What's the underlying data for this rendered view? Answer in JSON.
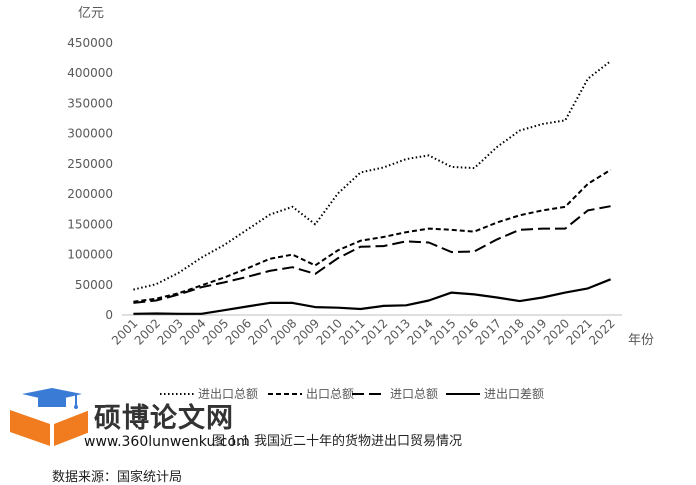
{
  "chart_data": {
    "type": "line",
    "ylabel": "亿元",
    "xlabel": "年份",
    "ylim": [
      0,
      450000
    ],
    "yticks": [
      0,
      50000,
      100000,
      150000,
      200000,
      250000,
      300000,
      350000,
      400000,
      450000
    ],
    "categories": [
      "2001",
      "2002",
      "2003",
      "2004",
      "2005",
      "2006",
      "2007",
      "2008",
      "2009",
      "2010",
      "2011",
      "2012",
      "2013",
      "2014",
      "2015",
      "2016",
      "2017",
      "2018",
      "2019",
      "2020",
      "2021",
      "2022"
    ],
    "series": [
      {
        "name": "进出口总额",
        "style": "dotted",
        "values": [
          42000,
          51000,
          70000,
          95000,
          116000,
          141000,
          166000,
          179000,
          150000,
          201000,
          236000,
          244000,
          258000,
          264000,
          245000,
          243000,
          278000,
          305000,
          316000,
          322000,
          391000,
          420000
        ]
      },
      {
        "name": "出口总额",
        "style": "short-dash",
        "values": [
          22000,
          27000,
          36000,
          49000,
          62000,
          77000,
          93000,
          100000,
          82000,
          107000,
          123000,
          129000,
          137000,
          143000,
          141000,
          138000,
          153000,
          165000,
          173000,
          179000,
          217000,
          240000
        ]
      },
      {
        "name": "进口总额",
        "style": "long-dash",
        "values": [
          20000,
          24000,
          34000,
          46000,
          54000,
          63000,
          73000,
          79000,
          68000,
          94000,
          113000,
          114000,
          122000,
          120000,
          104000,
          105000,
          125000,
          141000,
          143000,
          143000,
          173000,
          180000
        ]
      },
      {
        "name": "进出口差额",
        "style": "solid",
        "values": [
          2000,
          2500,
          2000,
          2000,
          8000,
          14000,
          20000,
          20000,
          13000,
          12000,
          10000,
          15000,
          16000,
          24000,
          37000,
          34000,
          29000,
          23000,
          29000,
          37000,
          44000,
          59000
        ]
      }
    ]
  },
  "caption": "图 1.1  我国近二十年的货物进出口贸易情况",
  "source": "数据来源：国家统计局",
  "watermark": {
    "title": "硕博论文网",
    "url": "www.360lunwenku.com",
    "icon": "graduation-cap-book-icon",
    "colors": {
      "blue": "#3a7bd5",
      "orange": "#f07c1f"
    }
  }
}
